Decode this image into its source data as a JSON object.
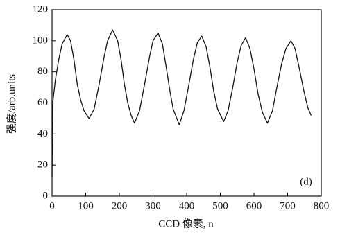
{
  "chart_data": {
    "type": "line",
    "y_label": "强度/arb.units",
    "x_label": "CCD 像素, n",
    "annotation": "(d)",
    "x": [
      0,
      2,
      10,
      20,
      30,
      45,
      55,
      65,
      75,
      85,
      95,
      110,
      125,
      140,
      155,
      165,
      180,
      195,
      205,
      215,
      225,
      235,
      245,
      260,
      275,
      290,
      300,
      315,
      328,
      340,
      350,
      360,
      378,
      392,
      405,
      420,
      432,
      445,
      458,
      470,
      480,
      492,
      510,
      523,
      537,
      550,
      562,
      575,
      588,
      600,
      612,
      625,
      640,
      655,
      668,
      682,
      695,
      710,
      722,
      735,
      748,
      760,
      770
    ],
    "series": [
      {
        "color": "#111111",
        "values": [
          12,
          60,
          75,
          88,
          98,
          104,
          100,
          88,
          72,
          62,
          55,
          50,
          56,
          72,
          90,
          100,
          107,
          100,
          88,
          72,
          60,
          52,
          47,
          55,
          72,
          90,
          100,
          105,
          98,
          82,
          68,
          56,
          46,
          55,
          70,
          88,
          99,
          103,
          96,
          82,
          68,
          56,
          48,
          55,
          70,
          86,
          97,
          102,
          95,
          82,
          66,
          54,
          47,
          55,
          70,
          85,
          95,
          100,
          95,
          82,
          68,
          57,
          52
        ]
      }
    ],
    "xlim": [
      0,
      800
    ],
    "xticks": [
      0,
      100,
      200,
      300,
      400,
      500,
      600,
      700,
      800
    ],
    "ylim": [
      0,
      120
    ],
    "yticks": [
      0,
      20,
      40,
      60,
      80,
      100,
      120
    ],
    "grid": false
  }
}
